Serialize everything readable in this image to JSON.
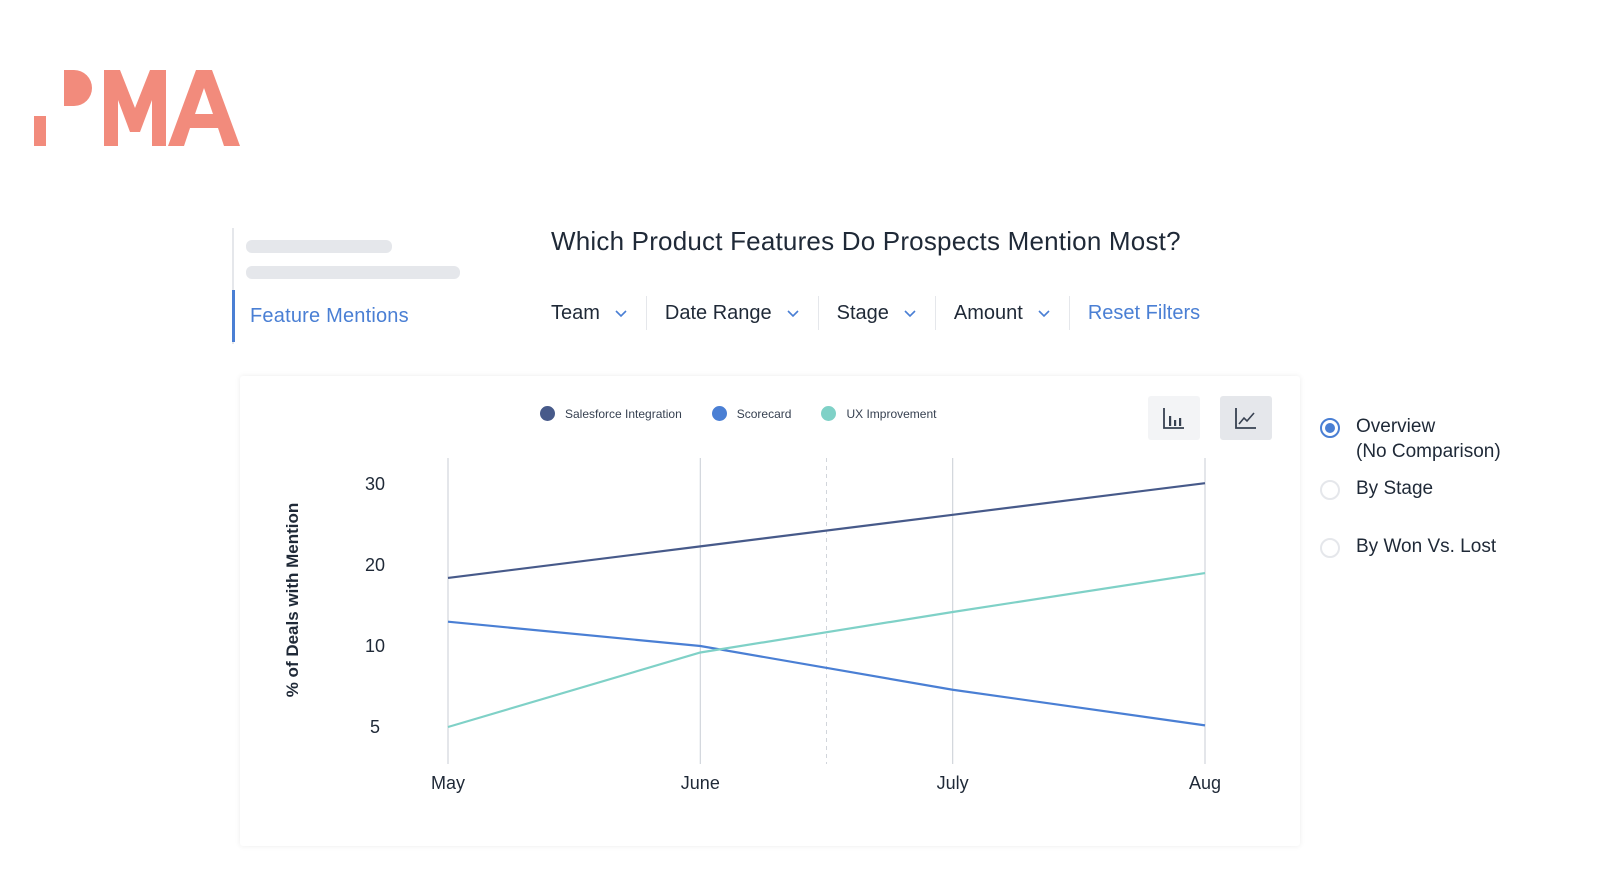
{
  "logo": {
    "text": "PMA",
    "color": "#f28b7c"
  },
  "sidebar": {
    "active_item": "Feature Mentions"
  },
  "page": {
    "title": "Which Product Features Do Prospects Mention Most?"
  },
  "filters": {
    "items": [
      {
        "label": "Team"
      },
      {
        "label": "Date Range"
      },
      {
        "label": "Stage"
      },
      {
        "label": "Amount"
      }
    ],
    "reset_label": "Reset Filters"
  },
  "icons": {
    "filter_chevron": "chevron-down-icon",
    "bar_view": "bar-chart-icon",
    "line_view": "line-chart-icon"
  },
  "colors": {
    "accent": "#4a7fd4",
    "salesforce": "#475a8a",
    "scorecard": "#4a7fd4",
    "ux": "#7fd1c7"
  },
  "chart_data": {
    "type": "line",
    "title": "",
    "xlabel": "",
    "ylabel": "% of Deals with Mention",
    "categories": [
      "May",
      "June",
      "July",
      "Aug"
    ],
    "yticks": [
      5,
      10,
      20,
      30
    ],
    "ylim": [
      5,
      30
    ],
    "grid": "vertical",
    "legend_position": "top",
    "series": [
      {
        "name": "Salesforce Integration",
        "color": "#475a8a",
        "values": [
          18.4,
          22.3,
          26.2,
          30.1
        ]
      },
      {
        "name": "Scorecard",
        "color": "#4a7fd4",
        "values": [
          13,
          10,
          7.3,
          5.1
        ]
      },
      {
        "name": "UX Improvement",
        "color": "#7fd1c7",
        "values": [
          5,
          9.6,
          14.2,
          19
        ]
      }
    ]
  },
  "comparison": {
    "selected": 0,
    "options": [
      {
        "line1": "Overview",
        "line2": "(No Comparison)"
      },
      {
        "line1": "By Stage",
        "line2": ""
      },
      {
        "line1": "By Won Vs. Lost",
        "line2": ""
      }
    ]
  }
}
